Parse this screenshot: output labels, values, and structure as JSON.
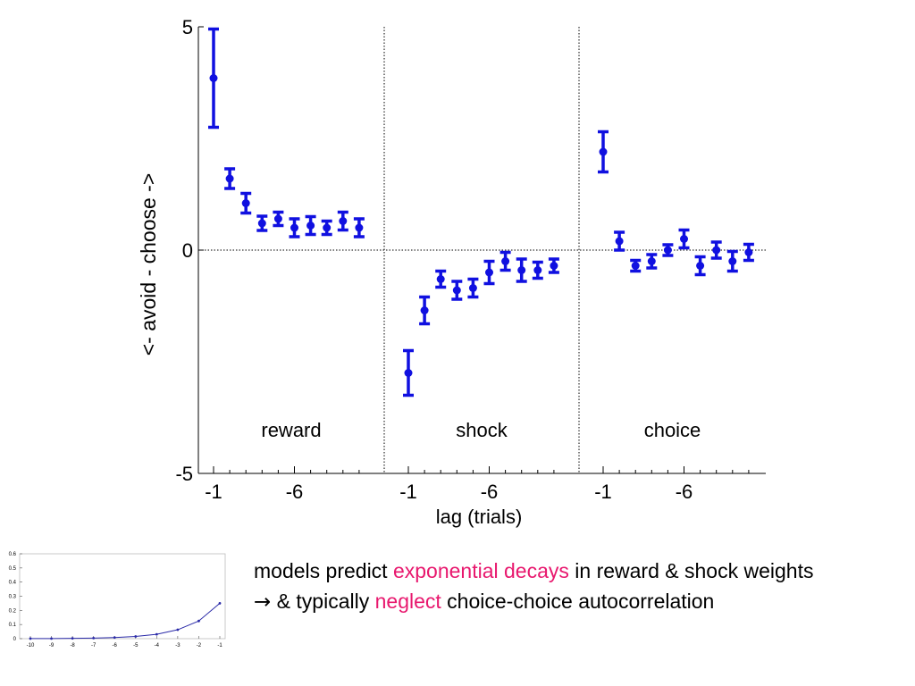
{
  "colors": {
    "series": "#1010e0",
    "highlight": "#e8186e",
    "inset_line": "#2a2aa8"
  },
  "chart_data": [
    {
      "type": "scatter",
      "ylabel": "<- avoid  - choose ->",
      "xlabel": "lag (trials)",
      "ylim": [
        -5,
        5
      ],
      "y_ticks": [
        "5",
        "0",
        "-5"
      ],
      "x_tick_labels": [
        "-1",
        "-6"
      ],
      "error_bars": true,
      "zero_line": "dotted",
      "panels": [
        {
          "name": "reward",
          "lags": [
            -1,
            -2,
            -3,
            -4,
            -5,
            -6,
            -7,
            -8,
            -9,
            -10
          ],
          "values": [
            3.85,
            1.6,
            1.05,
            0.6,
            0.7,
            0.5,
            0.55,
            0.5,
            0.65,
            0.5
          ],
          "errors": [
            1.1,
            0.22,
            0.22,
            0.16,
            0.15,
            0.2,
            0.2,
            0.15,
            0.2,
            0.2
          ]
        },
        {
          "name": "shock",
          "lags": [
            -1,
            -2,
            -3,
            -4,
            -5,
            -6,
            -7,
            -8,
            -9,
            -10
          ],
          "values": [
            -2.75,
            -1.35,
            -0.65,
            -0.9,
            -0.85,
            -0.5,
            -0.25,
            -0.45,
            -0.45,
            -0.35
          ],
          "errors": [
            0.5,
            0.3,
            0.18,
            0.2,
            0.2,
            0.25,
            0.2,
            0.25,
            0.18,
            0.15
          ]
        },
        {
          "name": "choice",
          "lags": [
            -1,
            -2,
            -3,
            -4,
            -5,
            -6,
            -7,
            -8,
            -9,
            -10
          ],
          "values": [
            2.2,
            0.2,
            -0.35,
            -0.25,
            0.0,
            0.25,
            -0.35,
            0.0,
            -0.25,
            -0.05
          ],
          "errors": [
            0.45,
            0.2,
            0.12,
            0.15,
            0.12,
            0.2,
            0.2,
            0.18,
            0.22,
            0.18
          ]
        }
      ]
    },
    {
      "type": "line",
      "x": [
        -10,
        -9,
        -8,
        -7,
        -6,
        -5,
        -4,
        -3,
        -2,
        -1
      ],
      "values": [
        0.0005,
        0.001,
        0.002,
        0.004,
        0.008,
        0.016,
        0.031,
        0.063,
        0.125,
        0.25
      ],
      "x_tick_labels": [
        "-10",
        "-9",
        "-8",
        "-7",
        "-6",
        "-5",
        "-4",
        "-3",
        "-2",
        "-1"
      ],
      "y_tick_labels": [
        "0",
        "0.1",
        "0.2",
        "0.3",
        "0.4",
        "0.5",
        "0.6"
      ],
      "ylim": [
        0,
        0.6
      ]
    }
  ],
  "caption": {
    "line1_pre": "models predict ",
    "line1_highlight": "exponential decays",
    "line1_post": " in reward & shock weights",
    "line2_arrow": "→",
    "line2_pre": " & typically ",
    "line2_highlight": "neglect",
    "line2_post": " choice-choice autocorrelation"
  }
}
